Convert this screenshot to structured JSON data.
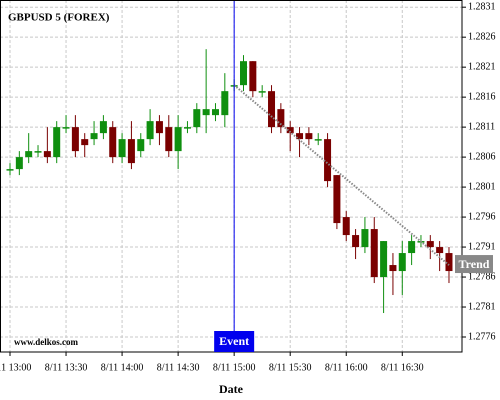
{
  "chart_data": {
    "type": "candlestick",
    "title": "GBPUSD 5 (FOREX)",
    "watermark": "www.delkos.com",
    "x_label": "Date",
    "categories": [
      "8/11 13:00",
      null,
      null,
      null,
      null,
      null,
      "8/11 13:30",
      null,
      null,
      null,
      null,
      null,
      "8/11 14:00",
      null,
      null,
      null,
      null,
      null,
      "8/11 14:30",
      null,
      null,
      null,
      null,
      null,
      "8/11 15:00",
      null,
      null,
      null,
      null,
      null,
      "8/11 15:30",
      null,
      null,
      null,
      null,
      null,
      "8/11 16:00",
      null,
      null,
      null,
      null,
      null,
      "8/11 16:30",
      null,
      null,
      null,
      null,
      null
    ],
    "open": [
      1.2804,
      1.2804,
      1.2806,
      1.2807,
      1.2807,
      1.2806,
      1.2811,
      1.2811,
      1.2809,
      1.2809,
      1.281,
      1.2811,
      1.2806,
      1.2809,
      1.2807,
      1.2809,
      1.2812,
      1.2811,
      1.2807,
      1.2811,
      1.2811,
      1.2813,
      1.2813,
      1.2813,
      1.2818,
      1.2818,
      1.2822,
      1.2817,
      1.2817,
      1.2814,
      1.2811,
      1.281,
      1.281,
      1.2809,
      1.2809,
      1.2803,
      1.2796,
      1.2793,
      1.2791,
      1.2794,
      1.2786,
      1.2788,
      1.2787,
      1.279,
      1.2792,
      1.2792,
      1.2791,
      1.279
    ],
    "high": [
      1.2805,
      1.2807,
      1.281,
      1.2808,
      1.2811,
      1.2812,
      1.2813,
      1.2813,
      1.281,
      1.2812,
      1.2813,
      1.2812,
      1.281,
      1.2812,
      1.281,
      1.2814,
      1.2813,
      1.2813,
      1.2813,
      1.2812,
      1.2815,
      1.2824,
      1.2815,
      1.282,
      1.2819,
      1.2823,
      1.2822,
      1.2818,
      1.2818,
      1.2815,
      1.2812,
      1.2811,
      1.2811,
      1.281,
      1.281,
      1.2803,
      1.2797,
      1.2794,
      1.2796,
      1.2796,
      1.2792,
      1.279,
      1.2792,
      1.2793,
      1.2793,
      1.2793,
      1.2792,
      1.2791
    ],
    "low": [
      1.2803,
      1.2803,
      1.2805,
      1.2806,
      1.2805,
      1.2805,
      1.281,
      1.2806,
      1.2806,
      1.2808,
      1.2809,
      1.2805,
      1.2805,
      1.2804,
      1.2806,
      1.2808,
      1.2808,
      1.2806,
      1.2804,
      1.281,
      1.281,
      1.281,
      1.2812,
      1.2811,
      1.2817,
      1.2817,
      1.2816,
      1.2816,
      1.281,
      1.281,
      1.2807,
      1.2806,
      1.2808,
      1.2808,
      1.2801,
      1.2794,
      1.2792,
      1.2789,
      1.279,
      1.2785,
      1.278,
      1.2783,
      1.2783,
      1.2788,
      1.2791,
      1.2789,
      1.2787,
      1.2785
    ],
    "close": [
      1.2804,
      1.2806,
      1.2807,
      1.2807,
      1.2806,
      1.2811,
      1.2811,
      1.2807,
      1.2808,
      1.281,
      1.2812,
      1.2806,
      1.2809,
      1.2805,
      1.2809,
      1.2812,
      1.281,
      1.2807,
      1.2811,
      1.2811,
      1.2814,
      1.2814,
      1.2814,
      1.2817,
      1.2818,
      1.2822,
      1.2817,
      1.2817,
      1.2811,
      1.2811,
      1.281,
      1.2809,
      1.2809,
      1.2809,
      1.2802,
      1.2795,
      1.2793,
      1.2791,
      1.2794,
      1.2786,
      1.2792,
      1.2787,
      1.279,
      1.2792,
      1.2792,
      1.2791,
      1.279,
      1.2787
    ],
    "up_color": "#0f8f0f",
    "down_color": "#7a0000",
    "ylim": [
      1.27735,
      1.28322
    ],
    "yticks": [
      1.2776,
      1.2781,
      1.2786,
      1.2791,
      1.2796,
      1.2801,
      1.2806,
      1.2811,
      1.2816,
      1.2821,
      1.2826,
      1.2831
    ],
    "grid": true,
    "event": {
      "label": "Event",
      "index": 24,
      "color": "#0000ee"
    },
    "trend": {
      "label": "Trend",
      "from_index": 24,
      "from_value": 1.2818,
      "to_index": 47,
      "to_value": 1.2788,
      "color": "#888888"
    }
  }
}
